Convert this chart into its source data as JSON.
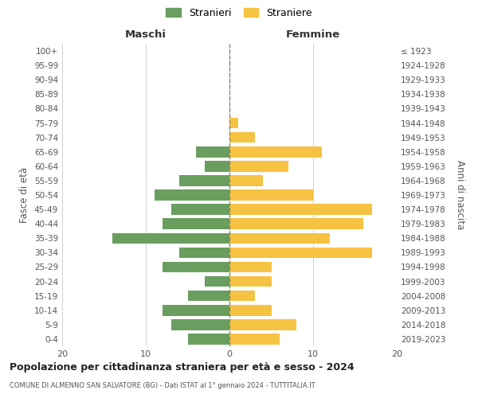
{
  "age_groups": [
    "0-4",
    "5-9",
    "10-14",
    "15-19",
    "20-24",
    "25-29",
    "30-34",
    "35-39",
    "40-44",
    "45-49",
    "50-54",
    "55-59",
    "60-64",
    "65-69",
    "70-74",
    "75-79",
    "80-84",
    "85-89",
    "90-94",
    "95-99",
    "100+"
  ],
  "birth_years": [
    "2019-2023",
    "2014-2018",
    "2009-2013",
    "2004-2008",
    "1999-2003",
    "1994-1998",
    "1989-1993",
    "1984-1988",
    "1979-1983",
    "1974-1978",
    "1969-1973",
    "1964-1968",
    "1959-1963",
    "1954-1958",
    "1949-1953",
    "1944-1948",
    "1939-1943",
    "1934-1938",
    "1929-1933",
    "1924-1928",
    "≤ 1923"
  ],
  "maschi": [
    5,
    7,
    8,
    5,
    3,
    8,
    6,
    14,
    8,
    7,
    9,
    6,
    3,
    4,
    0,
    0,
    0,
    0,
    0,
    0,
    0
  ],
  "femmine": [
    6,
    8,
    5,
    3,
    5,
    5,
    17,
    12,
    16,
    17,
    10,
    4,
    7,
    11,
    3,
    1,
    0,
    0,
    0,
    0,
    0
  ],
  "maschi_color": "#6a9e5f",
  "femmine_color": "#f5c242",
  "background_color": "#ffffff",
  "grid_color": "#d0d0d0",
  "title": "Popolazione per cittadinanza straniera per età e sesso - 2024",
  "subtitle": "COMUNE DI ALMENNO SAN SALVATORE (BG) - Dati ISTAT al 1° gennaio 2024 - TUTTITALIA.IT",
  "xlabel_left": "Maschi",
  "xlabel_right": "Femmine",
  "ylabel_left": "Fasce di età",
  "ylabel_right": "Anni di nascita",
  "legend_stranieri": "Stranieri",
  "legend_straniere": "Straniere",
  "xlim": 20,
  "bar_height": 0.75
}
